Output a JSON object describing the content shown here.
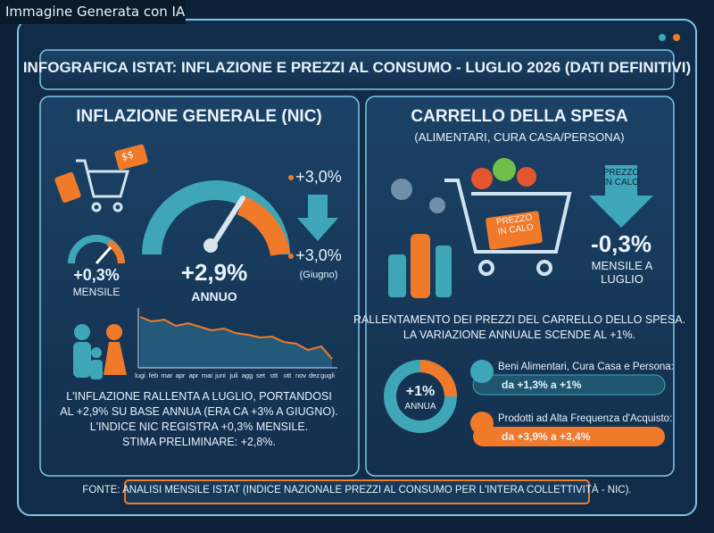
{
  "badge": "Immagine Generata con IA",
  "title": "INFOGRAFICA ISTAT: INFLAZIONE E PREZZI AL CONSUMO - LUGLIO 2026 (DATI DEFINITIVI)",
  "left": {
    "heading": "INFLAZIONE GENERALE (NIC)",
    "tag": "$$",
    "monthly_value": "+0,3%",
    "monthly_label": "MENSILE",
    "annual_value": "+2,9%",
    "annual_label": "ANNUO",
    "prev_top": "+3,0%",
    "prev_value": "+3,0%",
    "prev_label": "(Giugno)",
    "months": [
      "lugi",
      "feb",
      "mar",
      "apr",
      "apr",
      "mai",
      "juni",
      "juli",
      "agg",
      "set",
      "ott",
      "ott",
      "nov",
      "dez",
      "gugli"
    ],
    "text": [
      "L'INFLAZIONE RALLENTA A LUGLIO, PORTANDOSI",
      "AL +2,9% SU BASE ANNUA (ERA CA +3% A GIUGNO).",
      "L'INDICE NIC REGISTRA +0,3% MENSILE.",
      "STIMA PRELIMINARE: +2,8%."
    ]
  },
  "right": {
    "heading": "CARRELLO DELLA SPESA",
    "subheading": "(ALIMENTARI, CURA CASA/PERSONA)",
    "cart_sign": "PREZZO IN CALO",
    "arrow_label": "PREZZO IN CALO",
    "monthly_value": "-0,3%",
    "monthly_label": "MENSILE A LUGLIO",
    "text": [
      "RALLENTAMENTO DEI PREZZI DEL CARRELLO DELLO SPESA.",
      "LA VARIAZIONE ANNUALE SCENDE AL +1%."
    ],
    "donut_value": "+1%",
    "donut_label": "ANNUA",
    "items": [
      {
        "label": "Beni Alimentari, Cura Casa e Persona:",
        "change": "da +1,3% a +1%"
      },
      {
        "label": "Prodotti ad Alta Frequenza d'Acquisto:",
        "change": "da +3,9% a +3,4%"
      }
    ]
  },
  "footer": "FONTE: ANALISI MENSILE ISTAT (INDICE NAZIONALE PREZZI AL CONSUMO PER L'INTERA COLLETTIVITÀ - NIC)."
}
